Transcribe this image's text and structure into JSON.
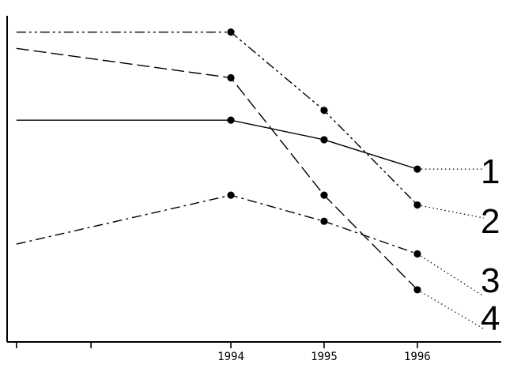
{
  "chart_data": {
    "type": "line",
    "title": "",
    "xlabel": "",
    "ylabel": "",
    "grid": false,
    "legend": "none",
    "x_ticks": [
      {
        "x": 1991.7,
        "label": ""
      },
      {
        "x": 1992.5,
        "label": ""
      },
      {
        "x": 1994,
        "label": "1994"
      },
      {
        "x": 1995,
        "label": "1995"
      },
      {
        "x": 1996,
        "label": "1996"
      }
    ],
    "xlim": [
      1991.6,
      1996.9
    ],
    "ylim": [
      0,
      100
    ],
    "x": [
      1991.7,
      1994,
      1995,
      1996
    ],
    "series": [
      {
        "name": "1",
        "values": [
          68,
          68,
          62,
          53
        ],
        "marker_points": [
          1994,
          1995,
          1996
        ],
        "extend_to_y": 53,
        "style": "solid"
      },
      {
        "name": "2",
        "values": [
          95,
          95,
          71,
          42
        ],
        "marker_points": [
          1994,
          1995,
          1996
        ],
        "extend_to_y": 38,
        "style": "dash-dot-dot"
      },
      {
        "name": "3",
        "values": [
          30,
          45,
          37,
          27
        ],
        "marker_points": [
          1994,
          1995,
          1996
        ],
        "extend_to_y": 14,
        "style": "dash-dot"
      },
      {
        "name": "4",
        "values": [
          90,
          81,
          45,
          16
        ],
        "marker_points": [
          1994,
          1995,
          1996
        ],
        "extend_to_y": 4,
        "style": "dashed"
      }
    ]
  }
}
